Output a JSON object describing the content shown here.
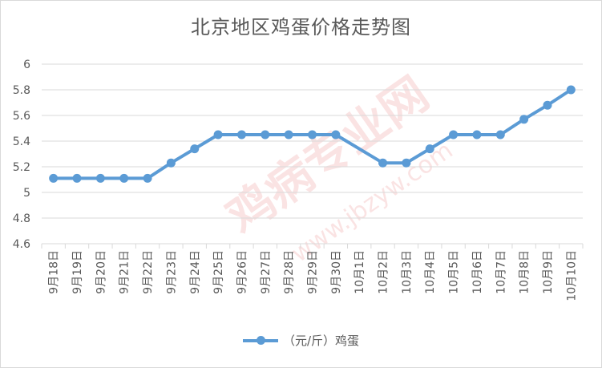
{
  "chart_data": {
    "type": "line",
    "title": "北京地区鸡蛋价格走势图",
    "categories": [
      "9月18日",
      "9月19日",
      "9月20日",
      "9月21日",
      "9月22日",
      "9月23日",
      "9月24日",
      "9月25日",
      "9月26日",
      "9月27日",
      "9月28日",
      "9月29日",
      "9月30日",
      "10月1日",
      "10月2日",
      "10月3日",
      "10月4日",
      "10月5日",
      "10月6日",
      "10月7日",
      "10月8日",
      "10月9日",
      "10月10日"
    ],
    "series": [
      {
        "name": "（元/斤）鸡蛋",
        "color": "#5b9bd5",
        "values": [
          5.11,
          5.11,
          5.11,
          5.11,
          5.11,
          5.23,
          5.34,
          5.45,
          5.45,
          5.45,
          5.45,
          5.45,
          5.45,
          null,
          5.23,
          5.23,
          5.34,
          5.45,
          5.45,
          5.45,
          5.57,
          5.68,
          5.8
        ]
      }
    ],
    "ylim": [
      4.6,
      6
    ],
    "yticks": [
      "4.6",
      "4.8",
      "5",
      "5.2",
      "5.4",
      "5.6",
      "5.8",
      "6"
    ],
    "grid": true,
    "legend": "bottom",
    "xlabel": "",
    "ylabel": ""
  },
  "watermark": {
    "text_main": "鸡病专业网",
    "text_url": "www.jbzyw.com"
  }
}
